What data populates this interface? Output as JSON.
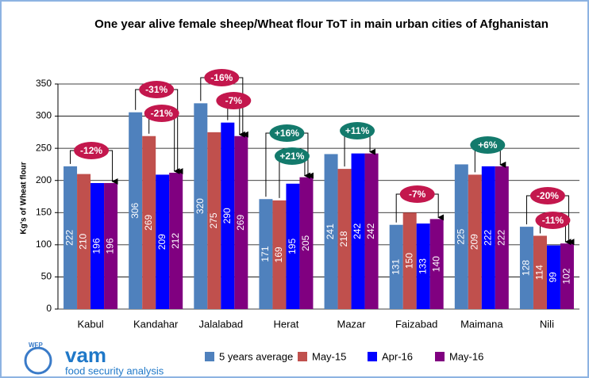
{
  "chart_data": {
    "type": "bar",
    "title": "One year alive female sheep/Wheat flour ToT in main urban cities of Afghanistan",
    "ylabel": "Kg's of Wheat flour",
    "categories": [
      "Kabul",
      "Kandahar",
      "Jalalabad",
      "Herat",
      "Mazar",
      "Faizabad",
      "Maimana",
      "Nili"
    ],
    "series": [
      {
        "name": "5 years average",
        "color": "#4f81bd",
        "values": [
          222,
          306,
          320,
          171,
          241,
          131,
          225,
          128
        ]
      },
      {
        "name": "May-15",
        "color": "#c0504d",
        "values": [
          210,
          269,
          275,
          169,
          218,
          150,
          209,
          114
        ]
      },
      {
        "name": "Apr-16",
        "color": "#0000ff",
        "values": [
          196,
          209,
          290,
          195,
          242,
          133,
          222,
          99
        ]
      },
      {
        "name": "May-16",
        "color": "#800080",
        "values": [
          196,
          212,
          269,
          205,
          242,
          140,
          222,
          102
        ]
      }
    ],
    "ylim": [
      0,
      350
    ],
    "yticks": [
      0,
      50,
      100,
      150,
      200,
      250,
      300,
      350
    ],
    "grid": true,
    "annotations": [
      "-12%",
      "-31%",
      "-21%",
      "-16%",
      "-7%",
      "+16%",
      "+21%",
      "+11%",
      "-7%",
      "+6%",
      "-20%",
      "-11%"
    ]
  },
  "logo": {
    "org": "WFP",
    "name": "vam",
    "tagline": "food security analysis"
  }
}
